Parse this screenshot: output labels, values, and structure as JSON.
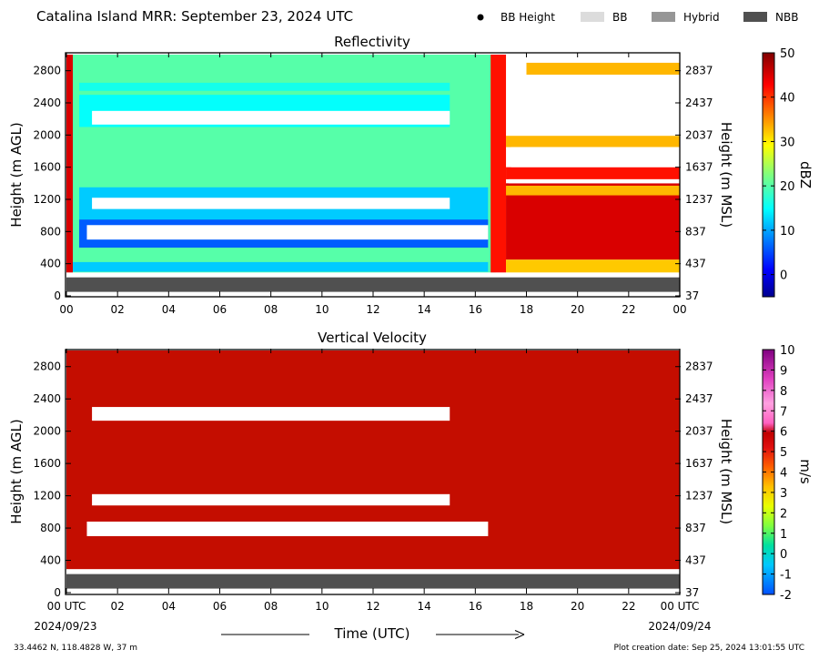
{
  "header": {
    "title": "Catalina Island MRR:  September 23, 2024 UTC",
    "legend": [
      {
        "label": "BB Height",
        "kind": "dot",
        "color": "#000000"
      },
      {
        "label": "BB",
        "kind": "box",
        "color": "#dcdcdc"
      },
      {
        "label": "Hybrid",
        "kind": "box",
        "color": "#969696"
      },
      {
        "label": "NBB",
        "kind": "box",
        "color": "#505050"
      }
    ]
  },
  "footer": {
    "location": "33.4462 N, 118.4828 W, 37 m",
    "creation": "Plot creation date: Sep 25, 2024 13:01:55 UTC",
    "xlabel": "Time (UTC)"
  },
  "chart_data": [
    {
      "type": "heatmap",
      "title": "Reflectivity",
      "xlabel": "",
      "ylabel": "Height (m AGL)",
      "ylabel_right": "Height (m MSL)",
      "xlim": [
        0,
        24
      ],
      "ylim": [
        0,
        3000
      ],
      "x_ticks": [
        "00",
        "02",
        "04",
        "06",
        "08",
        "10",
        "12",
        "14",
        "16",
        "18",
        "20",
        "22",
        "00"
      ],
      "y_ticks": [
        0,
        400,
        800,
        1200,
        1600,
        2000,
        2400,
        2800
      ],
      "y_ticks_right": [
        37,
        437,
        837,
        1237,
        1637,
        2037,
        2437,
        2837
      ],
      "colorbar": {
        "label": "dBZ",
        "min": -5,
        "max": 50,
        "ticks": [
          0,
          10,
          20,
          30,
          40,
          50
        ]
      },
      "nbb_band": {
        "from": 0,
        "to": 24,
        "bottom": 50,
        "top": 230
      },
      "data_floor": 290,
      "regimes": [
        {
          "name": "early-column",
          "t0": 0,
          "t1": 0.25,
          "bottom": 290,
          "top": 3000,
          "dbz": 45
        },
        {
          "name": "stratiform-low",
          "t0": 0.25,
          "t1": 16.8,
          "bottom": 290,
          "top": 3000,
          "dbz": 20
        },
        {
          "name": "transition",
          "t0": 16.6,
          "t1": 17.2,
          "bottom": 290,
          "top": 3000,
          "dbz": 42
        },
        {
          "name": "rain-layer",
          "t0": 17.2,
          "t1": 24,
          "bottom": 450,
          "top": 1400,
          "dbz": 45
        },
        {
          "name": "rain-surface",
          "t0": 17.2,
          "t1": 24,
          "bottom": 290,
          "top": 450,
          "dbz": 32
        }
      ],
      "layers": [
        {
          "t0": 0.25,
          "t1": 16.5,
          "bottom": 300,
          "top": 420,
          "dbz": 12
        },
        {
          "t0": 0.5,
          "t1": 16.5,
          "bottom": 600,
          "top": 950,
          "dbz": 6
        },
        {
          "t0": 0.5,
          "t1": 16.5,
          "bottom": 950,
          "top": 1350,
          "dbz": 12
        },
        {
          "t0": 0.5,
          "t1": 15.0,
          "bottom": 2100,
          "top": 2500,
          "dbz": 15
        },
        {
          "t0": 0.5,
          "t1": 15.0,
          "bottom": 2550,
          "top": 2650,
          "dbz": 16
        },
        {
          "t0": 17.2,
          "t1": 24,
          "bottom": 1250,
          "top": 1370,
          "dbz": 33
        },
        {
          "t0": 17.2,
          "t1": 24,
          "bottom": 1450,
          "top": 1600,
          "dbz": 42
        },
        {
          "t0": 17.2,
          "t1": 24,
          "bottom": 1850,
          "top": 1990,
          "dbz": 33
        },
        {
          "t0": 18.0,
          "t1": 24,
          "bottom": 2750,
          "top": 2900,
          "dbz": 33
        }
      ],
      "gaps": [
        {
          "t0": 1.0,
          "t1": 15.0,
          "bottom": 2130,
          "top": 2300
        },
        {
          "t0": 1.0,
          "t1": 15.0,
          "bottom": 1080,
          "top": 1220
        },
        {
          "t0": 0.8,
          "t1": 16.5,
          "bottom": 700,
          "top": 880
        },
        {
          "t0": 17.3,
          "t1": 24,
          "bottom": 1400,
          "top": 1450
        },
        {
          "t0": 17.4,
          "t1": 24,
          "bottom": 1600,
          "top": 1850
        },
        {
          "t0": 17.3,
          "t1": 24,
          "bottom": 2000,
          "top": 2750
        },
        {
          "t0": 17.3,
          "t1": 18.0,
          "bottom": 2750,
          "top": 3000
        },
        {
          "t0": 17.3,
          "t1": 24,
          "bottom": 2900,
          "top": 3000
        }
      ]
    },
    {
      "type": "heatmap",
      "title": "Vertical Velocity",
      "xlabel": "Time (UTC)",
      "ylabel": "Height (m AGL)",
      "ylabel_right": "Height (m MSL)",
      "xlim": [
        0,
        24
      ],
      "ylim": [
        0,
        3000
      ],
      "x_ticks": [
        "00 UTC",
        "02",
        "04",
        "06",
        "08",
        "10",
        "12",
        "14",
        "16",
        "18",
        "20",
        "22",
        "00 UTC"
      ],
      "x_dates": {
        "start": "2024/09/23",
        "end": "2024/09/24"
      },
      "y_ticks": [
        0,
        400,
        800,
        1200,
        1600,
        2000,
        2400,
        2800
      ],
      "y_ticks_right": [
        37,
        437,
        837,
        1237,
        1637,
        2037,
        2437,
        2837
      ],
      "colorbar": {
        "label": "m/s",
        "min": -2,
        "max": 10,
        "ticks": [
          -2,
          -1,
          0,
          1,
          2,
          3,
          4,
          5,
          6,
          7,
          8,
          9,
          10
        ]
      },
      "fill_value_ms": 6.0,
      "nbb_band": {
        "from": 0,
        "to": 24,
        "bottom": 50,
        "top": 230
      },
      "data_floor": 290,
      "gaps": [
        {
          "t0": 1.0,
          "t1": 15.0,
          "bottom": 2130,
          "top": 2300
        },
        {
          "t0": 1.0,
          "t1": 15.0,
          "bottom": 1080,
          "top": 1220
        },
        {
          "t0": 0.8,
          "t1": 16.5,
          "bottom": 700,
          "top": 880
        }
      ]
    }
  ]
}
